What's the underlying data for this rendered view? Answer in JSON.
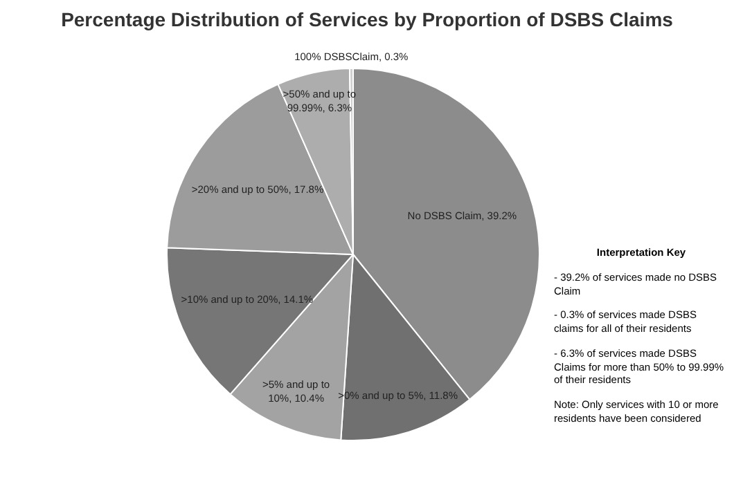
{
  "chart_data": {
    "type": "pie",
    "title": "Percentage Distribution of Services by Proportion of DSBS Claims",
    "categories": [
      "No DSBS Claim",
      ">0% and up to 5%",
      ">5% and up to 10%",
      ">10% and up to 20%",
      ">20% and up to 50%",
      ">50% and up to 99.99%",
      "100% DSBSClaim"
    ],
    "values": [
      39.2,
      11.8,
      10.4,
      14.1,
      17.8,
      6.3,
      0.3
    ],
    "value_labels": [
      "39.2%",
      "11.8%",
      "10.4%",
      "14.1%",
      "17.8%",
      "6.3%",
      "0.3%"
    ],
    "colors": [
      "#8c8c8c",
      "#707070",
      "#a3a3a3",
      "#767676",
      "#9c9c9c",
      "#adadad",
      "#cfcfcf"
    ],
    "legend": false,
    "annotations": [
      "Interpretation Key",
      "- 39.2% of services made no DSBS Claim",
      "- 0.3% of services made DSBS claims for all of their residents",
      "- 6.3% of services made DSBS Claims for more than 50% to 99.99% of their residents",
      "Note: Only services with 10 or more residents have been considered"
    ]
  }
}
